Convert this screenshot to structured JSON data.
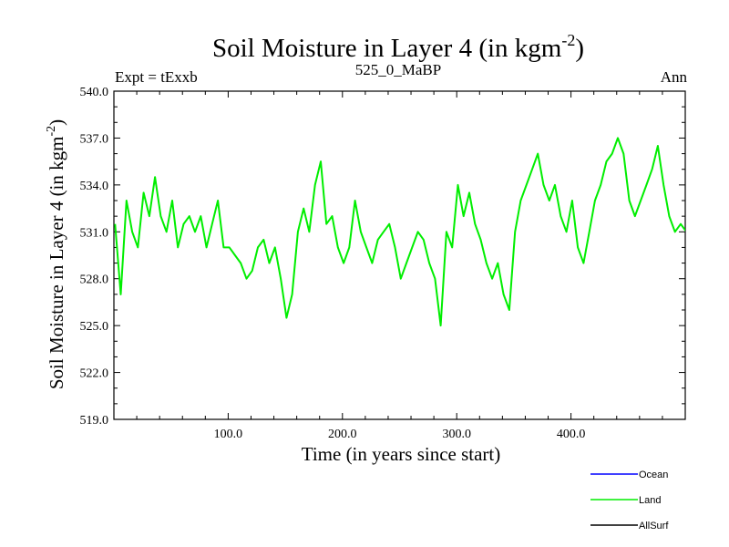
{
  "chart_data": {
    "type": "line",
    "title": "Soil Moisture in Layer 4 (in kgm",
    "title_superscript": "-2",
    "title_close": ")",
    "left_label": "Expt = tExxb",
    "center_label": "525_0_MaBP",
    "right_label": "Ann",
    "xlabel": "Time (in years since start)",
    "ylabel": "Soil Moisture in Layer 4 (in kgm",
    "ylabel_superscript": "-2",
    "ylabel_close": ")",
    "xlim": [
      0,
      500
    ],
    "ylim": [
      519,
      540
    ],
    "x_ticks": [
      100,
      200,
      300,
      400
    ],
    "x_tick_labels": [
      "100.0",
      "200.0",
      "300.0",
      "400.0"
    ],
    "y_ticks": [
      519,
      522,
      525,
      528,
      531,
      534,
      537,
      540
    ],
    "y_tick_labels": [
      "519.0",
      "522.0",
      "525.0",
      "528.0",
      "531.0",
      "534.0",
      "537.0",
      "540.0"
    ],
    "legend": [
      {
        "name": "Ocean",
        "color": "#0000ff"
      },
      {
        "name": "Land",
        "color": "#00ee00"
      },
      {
        "name": "AllSurf",
        "color": "#000000"
      }
    ],
    "series": [
      {
        "name": "Land",
        "color": "#00ee00",
        "x_start": 1,
        "x_step": 5,
        "values": [
          531.5,
          527.0,
          533.0,
          531.0,
          530.0,
          533.5,
          532.0,
          534.5,
          532.0,
          531.0,
          533.0,
          530.0,
          531.5,
          532.0,
          531.0,
          532.0,
          530.0,
          531.5,
          533.0,
          530.0,
          530.0,
          529.5,
          529.0,
          528.0,
          528.5,
          530.0,
          530.5,
          529.0,
          530.0,
          528.0,
          525.5,
          527.0,
          531.0,
          532.5,
          531.0,
          534.0,
          535.5,
          531.5,
          532.0,
          530.0,
          529.0,
          530.0,
          533.0,
          531.0,
          530.0,
          529.0,
          530.5,
          531.0,
          531.5,
          530.0,
          528.0,
          529.0,
          530.0,
          531.0,
          530.5,
          529.0,
          528.0,
          525.0,
          531.0,
          530.0,
          534.0,
          532.0,
          533.5,
          531.5,
          530.5,
          529.0,
          528.0,
          529.0,
          527.0,
          526.0,
          531.0,
          533.0,
          534.0,
          535.0,
          536.0,
          534.0,
          533.0,
          534.0,
          532.0,
          531.0,
          533.0,
          530.0,
          529.0,
          531.0,
          533.0,
          534.0,
          535.5,
          536.0,
          537.0,
          536.0,
          533.0,
          532.0,
          533.0,
          534.0,
          535.0,
          536.5,
          534.0,
          532.0,
          531.0,
          531.5,
          531.0,
          532.0,
          530.0,
          529.0,
          530.0,
          531.0,
          531.0,
          530.5,
          531.5,
          530.0,
          529.0,
          528.5,
          529.0,
          530.0,
          531.0,
          531.0,
          530.0,
          529.0,
          530.0,
          531.0,
          530.0,
          529.5,
          528.0,
          529.0,
          530.0,
          531.0,
          533.0,
          533.5,
          534.0,
          534.5,
          535.0,
          534.0,
          533.0,
          534.0,
          532.0,
          531.0,
          532.0,
          529.0,
          527.5,
          530.0,
          531.0,
          530.0,
          529.0,
          530.0,
          531.0,
          533.0,
          534.0,
          533.0,
          531.0,
          528.0,
          529.0,
          531.0,
          532.0,
          533.5,
          533.0,
          532.0,
          532.5,
          531.5,
          531.0,
          530.0,
          530.5,
          531.0,
          530.0,
          528.5,
          528.0,
          527.5,
          528.0,
          528.0,
          527.5,
          529.0,
          528.5,
          528.0,
          529.0,
          527.0,
          528.0,
          525.5,
          527.0,
          533.0,
          535.0,
          534.0,
          532.0,
          530.0,
          529.5,
          532.5,
          532.0,
          530.0,
          531.0,
          532.0,
          534.0,
          533.0,
          532.0,
          531.0,
          532.0,
          530.0,
          528.0,
          529.0,
          530.0,
          529.0,
          528.0,
          529.0,
          530.5,
          531.0,
          533.0,
          532.0,
          531.0,
          531.5,
          530.0,
          528.0,
          526.0,
          524.0,
          523.0,
          525.5,
          528.0,
          530.0,
          530.5,
          531.0,
          530.5,
          532.0,
          531.0,
          533.0,
          535.0,
          534.0,
          531.0,
          530.0,
          528.0,
          530.0,
          527.0,
          526.0,
          528.0,
          530.0,
          529.5,
          530.0,
          531.0,
          529.0,
          528.0,
          527.0,
          529.0,
          531.0,
          532.0,
          533.0,
          532.0,
          530.0,
          529.0,
          531.0,
          532.0,
          530.0,
          529.0,
          527.0,
          524.0,
          521.0,
          524.0,
          526.0,
          527.0,
          529.0,
          530.0,
          531.0,
          533.0,
          534.0,
          535.0,
          533.0,
          531.0,
          530.0,
          529.0,
          531.0,
          533.0,
          534.0,
          532.0,
          531.0,
          529.0,
          530.0,
          531.5,
          533.0,
          532.0,
          530.5,
          529.0,
          528.5,
          530.0,
          532.0,
          533.5,
          531.0
        ]
      }
    ]
  }
}
